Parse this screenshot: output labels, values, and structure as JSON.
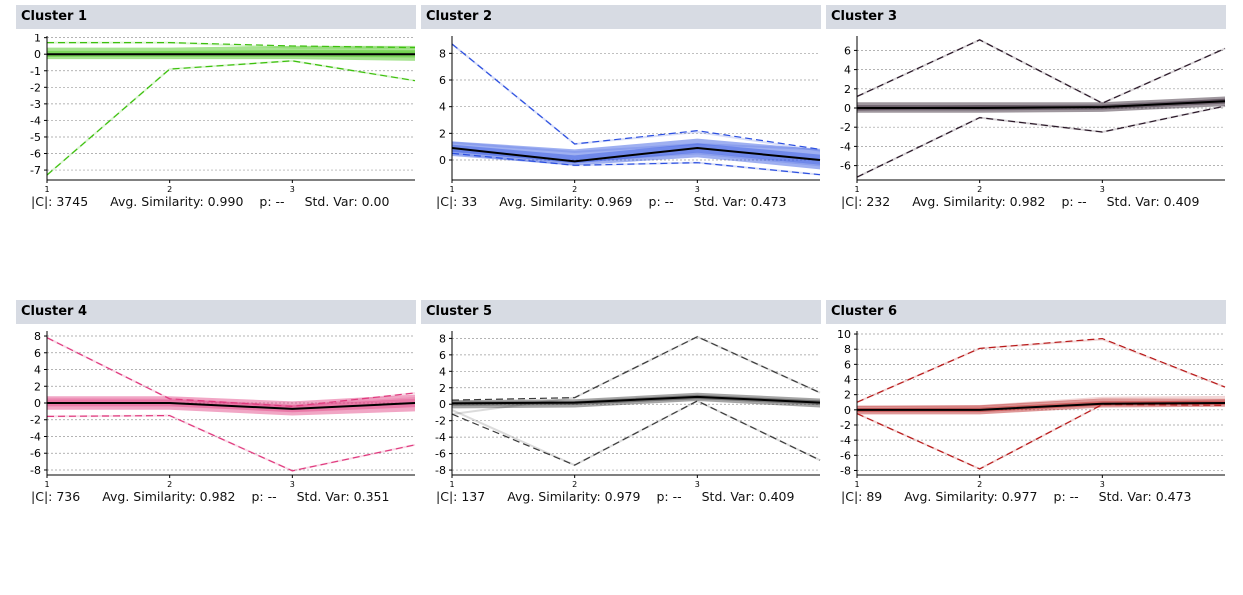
{
  "panels": [
    {
      "title": "Cluster 1",
      "count": "|C|: 3745",
      "sim": "Avg. Similarity: 0.990",
      "p": "p: --",
      "std": "Std. Var: 0.00"
    },
    {
      "title": "Cluster 2",
      "count": "|C|: 33",
      "sim": "Avg. Similarity: 0.969",
      "p": "p: --",
      "std": "Std. Var: 0.473"
    },
    {
      "title": "Cluster 3",
      "count": "|C|: 232",
      "sim": "Avg. Similarity: 0.982",
      "p": "p: --",
      "std": "Std. Var: 0.409"
    },
    {
      "title": "Cluster 4",
      "count": "|C|: 736",
      "sim": "Avg. Similarity: 0.982",
      "p": "p: --",
      "std": "Std. Var: 0.351"
    },
    {
      "title": "Cluster 5",
      "count": "|C|: 137",
      "sim": "Avg. Similarity: 0.979",
      "p": "p: --",
      "std": "Std. Var: 0.409"
    },
    {
      "title": "Cluster 6",
      "count": "|C|: 89",
      "sim": "Avg. Similarity: 0.977",
      "p": "p: --",
      "std": "Std. Var: 0.473"
    }
  ],
  "chart_data": [
    {
      "type": "line",
      "x": [
        1,
        2,
        3,
        4
      ],
      "xticks": [
        1,
        2,
        3
      ],
      "ylim": [
        -7.6,
        1.1
      ],
      "yticks": [
        1,
        0,
        -1,
        -2,
        -3,
        -4,
        -5,
        -6,
        -7
      ],
      "color": "#3cc00c",
      "mean": [
        0,
        0,
        0,
        0
      ],
      "band": [
        [
          -0.3,
          0.4
        ],
        [
          -0.3,
          0.4
        ],
        [
          -0.3,
          0.5
        ],
        [
          -0.4,
          0.5
        ]
      ],
      "profiles": [
        [
          -7.3,
          -0.9,
          -0.4,
          -1.6
        ],
        [
          0.7,
          0.7,
          0.4,
          0.4
        ],
        [
          -0.1,
          0.1,
          0,
          0.1
        ]
      ],
      "bounds": [
        [
          0.7,
          0.7,
          0.5,
          0.4
        ],
        [
          -7.3,
          -0.9,
          -0.4,
          -1.6
        ]
      ]
    },
    {
      "type": "line",
      "x": [
        1,
        2,
        3,
        4
      ],
      "xticks": [
        1,
        2,
        3
      ],
      "ylim": [
        -1.5,
        9.3
      ],
      "yticks": [
        8,
        6,
        4,
        2,
        0
      ],
      "color": "#2b4fe0",
      "mean": [
        0.9,
        -0.1,
        0.9,
        0
      ],
      "band": [
        [
          0.3,
          1.4
        ],
        [
          -0.4,
          0.8
        ],
        [
          0.2,
          1.6
        ],
        [
          -0.7,
          0.8
        ]
      ],
      "profiles": [
        [
          8.7,
          1.2,
          2.1,
          0.7
        ],
        [
          0.5,
          -0.4,
          -0.2,
          -1.1
        ],
        [
          1.3,
          0.6,
          1.2,
          0.8
        ],
        [
          0.7,
          -0.1,
          0.5,
          -0.4
        ]
      ],
      "bounds": [
        [
          8.7,
          1.2,
          2.2,
          0.8
        ],
        [
          0.5,
          -0.4,
          -0.2,
          -1.1
        ]
      ]
    },
    {
      "type": "line",
      "x": [
        1,
        2,
        3,
        4
      ],
      "xticks": [
        1,
        2,
        3
      ],
      "ylim": [
        -7.5,
        7.5
      ],
      "yticks": [
        6,
        4,
        2,
        0,
        -2,
        -4,
        -6
      ],
      "color": "#2a1828",
      "mean": [
        0,
        0,
        0.1,
        0.7
      ],
      "band": [
        [
          -0.5,
          0.6
        ],
        [
          -0.5,
          0.6
        ],
        [
          -0.4,
          0.6
        ],
        [
          0.2,
          1.2
        ]
      ],
      "profiles": [
        [
          1.2,
          7.1,
          0.5,
          6.2
        ],
        [
          -7.2,
          -1,
          -2.5,
          0.2
        ],
        [
          -0.2,
          0.2,
          0,
          0.9
        ]
      ],
      "bounds": [
        [
          1.2,
          7.1,
          0.5,
          6.2
        ],
        [
          -7.2,
          -1,
          -2.5,
          0.2
        ]
      ]
    },
    {
      "type": "line",
      "x": [
        1,
        2,
        3,
        4
      ],
      "xticks": [
        1,
        2,
        3
      ],
      "ylim": [
        -8.6,
        8.6
      ],
      "yticks": [
        8,
        6,
        4,
        2,
        0,
        -2,
        -4,
        -6,
        -8
      ],
      "color": "#e03a7e",
      "mean": [
        0,
        0,
        -0.7,
        0
      ],
      "band": [
        [
          -0.8,
          0.8
        ],
        [
          -0.8,
          0.8
        ],
        [
          -1.5,
          0.2
        ],
        [
          -1,
          1
        ]
      ],
      "profiles": [
        [
          7.8,
          0.5,
          -0.5,
          1.2
        ],
        [
          -1.6,
          -1.5,
          -8.1,
          -5
        ],
        [
          0.5,
          0.4,
          -0.3,
          0.6
        ]
      ],
      "bounds": [
        [
          7.8,
          0.5,
          -0.4,
          1.2
        ],
        [
          -1.6,
          -1.5,
          -8.1,
          -5
        ]
      ]
    },
    {
      "type": "line",
      "x": [
        1,
        2,
        3,
        4
      ],
      "xticks": [
        1,
        2,
        3
      ],
      "ylim": [
        -8.6,
        8.9
      ],
      "yticks": [
        8,
        6,
        4,
        2,
        0,
        -2,
        -4,
        -6,
        -8
      ],
      "color": "#3a3a3a",
      "mean": [
        0.1,
        0.2,
        0.9,
        0.2
      ],
      "band": [
        [
          -0.5,
          0.5
        ],
        [
          -0.4,
          0.6
        ],
        [
          0.4,
          1.4
        ],
        [
          -0.4,
          0.7
        ]
      ],
      "profiles": [
        [
          -1.2,
          0.8,
          8.2,
          1.4
        ],
        [
          -0.7,
          -7.4,
          0.4,
          -6.8
        ],
        [
          0.3,
          0.1,
          0.7,
          0.4
        ]
      ],
      "bounds": [
        [
          0.5,
          0.8,
          8.2,
          1.4
        ],
        [
          -1.2,
          -7.4,
          0.4,
          -6.8
        ]
      ]
    },
    {
      "type": "line",
      "x": [
        1,
        2,
        3,
        4
      ],
      "xticks": [
        1,
        2,
        3
      ],
      "ylim": [
        -8.6,
        10.4
      ],
      "yticks": [
        10,
        8,
        6,
        4,
        2,
        0,
        -2,
        -4,
        -6,
        -8
      ],
      "color": "#b81a1a",
      "mean": [
        0,
        0,
        0.8,
        0.9
      ],
      "band": [
        [
          -0.6,
          0.5
        ],
        [
          -0.6,
          0.6
        ],
        [
          0.3,
          1.5
        ],
        [
          0.4,
          1.5
        ]
      ],
      "profiles": [
        [
          1,
          8.1,
          9.3,
          3
        ],
        [
          -0.5,
          -7.8,
          0.7,
          1.3
        ],
        [
          0.5,
          0.5,
          1.6,
          1.7
        ]
      ],
      "bounds": [
        [
          1,
          8.1,
          9.4,
          3
        ],
        [
          -0.5,
          -7.8,
          0.7,
          0.6
        ]
      ]
    }
  ]
}
